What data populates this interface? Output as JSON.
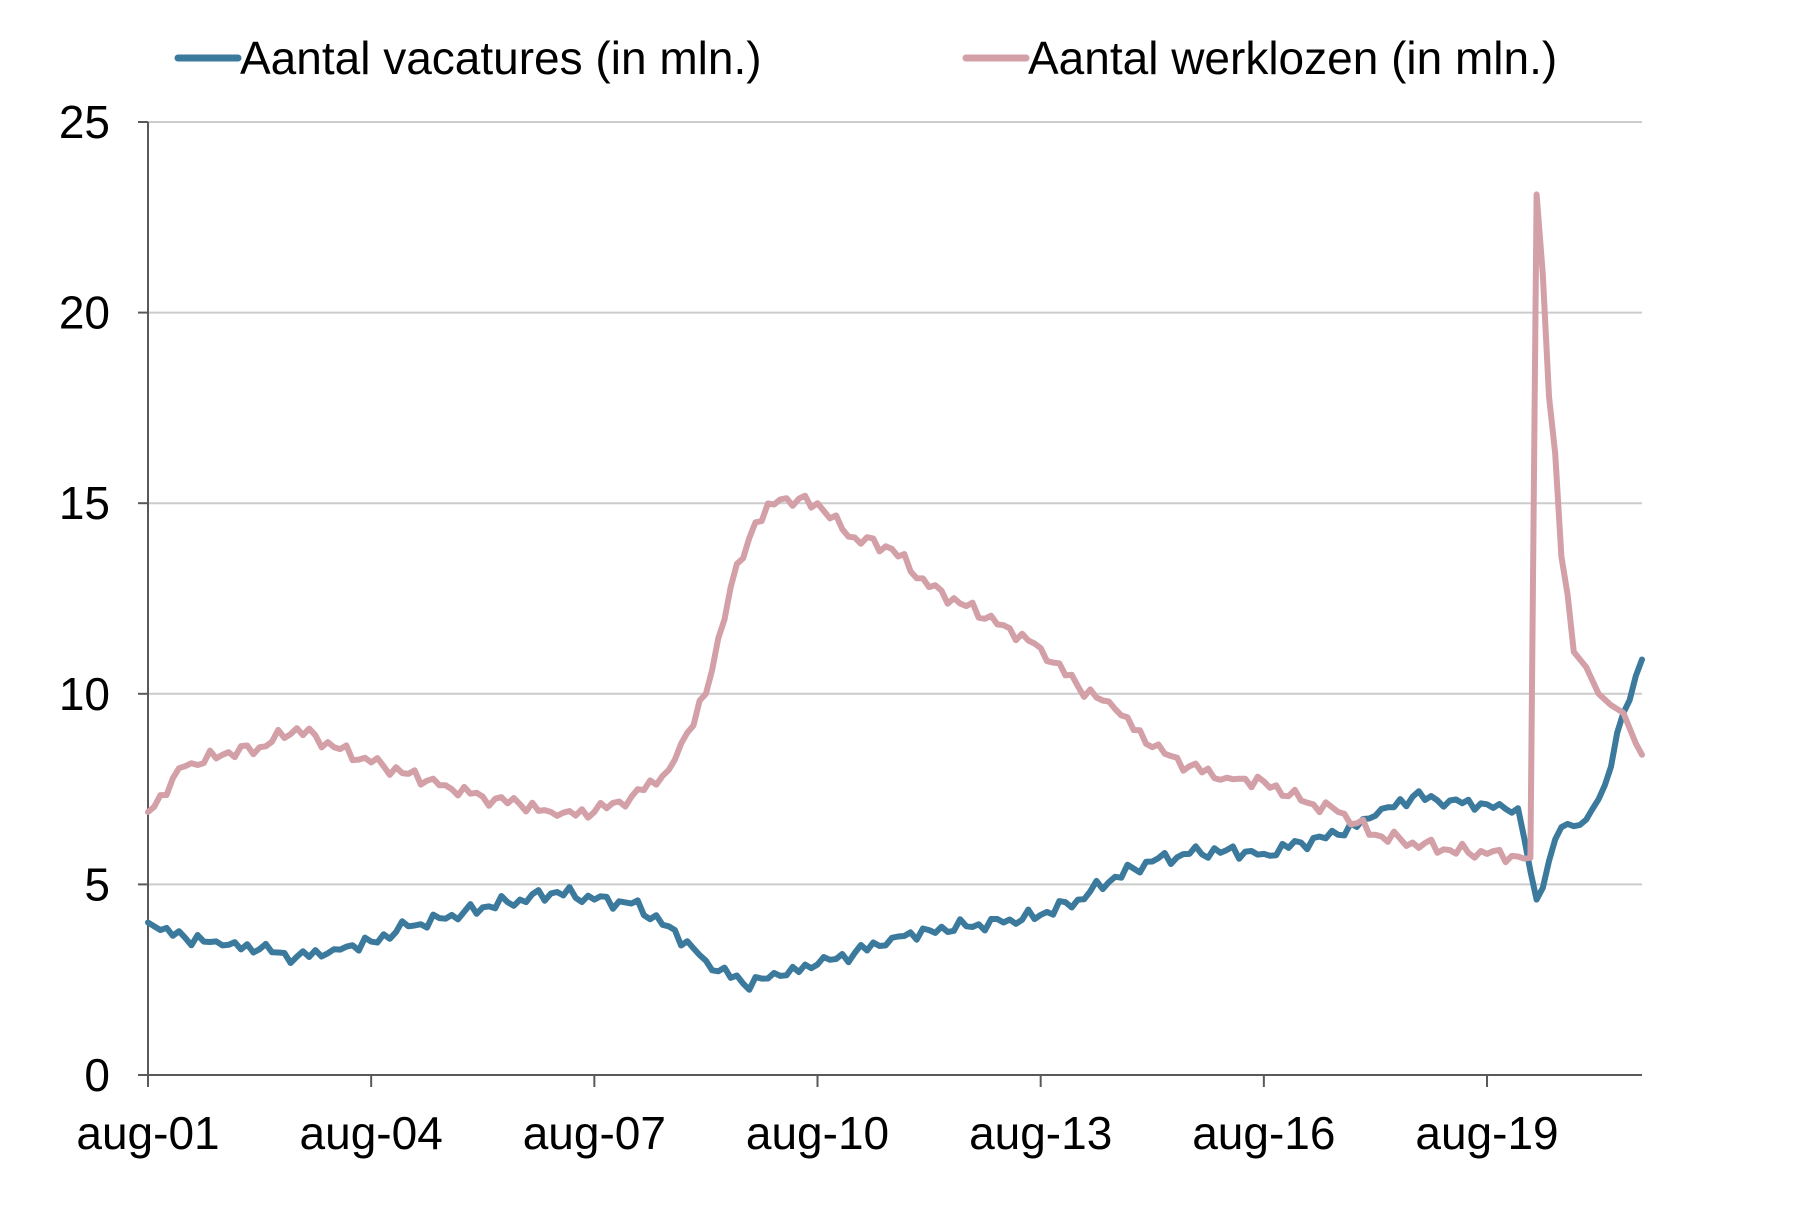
{
  "chart_data": {
    "type": "line",
    "title": "",
    "xlabel": "",
    "ylabel": "",
    "ylim": [
      0,
      25
    ],
    "yticks": [
      0,
      5,
      10,
      15,
      20,
      25
    ],
    "x_tick_labels": [
      "aug-01",
      "aug-04",
      "aug-07",
      "aug-10",
      "aug-13",
      "aug-16",
      "aug-19"
    ],
    "x_range": [
      "2001-08",
      "2021-09"
    ],
    "grid": "horizontal",
    "legend_position": "top",
    "series": [
      {
        "name": "Aantal vacatures (in mln.)",
        "color": "#3b7a9c",
        "points": [
          [
            "2001-08",
            4.0
          ],
          [
            "2001-10",
            3.8
          ],
          [
            "2002-02",
            3.6
          ],
          [
            "2002-08",
            3.4
          ],
          [
            "2003-02",
            3.3
          ],
          [
            "2003-08",
            3.1
          ],
          [
            "2004-02",
            3.3
          ],
          [
            "2004-08",
            3.5
          ],
          [
            "2005-02",
            3.9
          ],
          [
            "2005-08",
            4.1
          ],
          [
            "2006-02",
            4.4
          ],
          [
            "2006-08",
            4.6
          ],
          [
            "2007-02",
            4.8
          ],
          [
            "2007-08",
            4.6
          ],
          [
            "2008-02",
            4.5
          ],
          [
            "2008-08",
            3.9
          ],
          [
            "2009-02",
            3.0
          ],
          [
            "2009-08",
            2.4
          ],
          [
            "2010-02",
            2.6
          ],
          [
            "2010-08",
            2.9
          ],
          [
            "2011-02",
            3.2
          ],
          [
            "2011-08",
            3.6
          ],
          [
            "2012-02",
            3.8
          ],
          [
            "2012-08",
            3.9
          ],
          [
            "2013-02",
            4.0
          ],
          [
            "2013-08",
            4.2
          ],
          [
            "2014-02",
            4.6
          ],
          [
            "2014-08",
            5.2
          ],
          [
            "2015-02",
            5.6
          ],
          [
            "2015-08",
            5.8
          ],
          [
            "2016-02",
            5.9
          ],
          [
            "2016-08",
            5.8
          ],
          [
            "2017-02",
            6.1
          ],
          [
            "2017-08",
            6.3
          ],
          [
            "2018-02",
            6.8
          ],
          [
            "2018-08",
            7.3
          ],
          [
            "2019-02",
            7.2
          ],
          [
            "2019-08",
            7.1
          ],
          [
            "2020-01",
            7.0
          ],
          [
            "2020-04",
            4.6
          ],
          [
            "2020-08",
            6.5
          ],
          [
            "2020-12",
            6.7
          ],
          [
            "2021-03",
            7.6
          ],
          [
            "2021-06",
            9.5
          ],
          [
            "2021-09",
            10.9
          ]
        ]
      },
      {
        "name": "Aantal werklozen (in mln.)",
        "color": "#d3a0a8",
        "points": [
          [
            "2001-08",
            6.9
          ],
          [
            "2002-02",
            8.1
          ],
          [
            "2002-08",
            8.4
          ],
          [
            "2003-02",
            8.6
          ],
          [
            "2003-08",
            9.1
          ],
          [
            "2004-02",
            8.6
          ],
          [
            "2004-08",
            8.2
          ],
          [
            "2005-02",
            7.9
          ],
          [
            "2005-08",
            7.6
          ],
          [
            "2006-02",
            7.3
          ],
          [
            "2006-08",
            7.1
          ],
          [
            "2007-02",
            6.8
          ],
          [
            "2007-08",
            6.9
          ],
          [
            "2008-02",
            7.3
          ],
          [
            "2008-08",
            8.0
          ],
          [
            "2009-02",
            10.0
          ],
          [
            "2009-06",
            12.8
          ],
          [
            "2009-10",
            14.5
          ],
          [
            "2010-02",
            15.1
          ],
          [
            "2010-08",
            15.0
          ],
          [
            "2010-10",
            14.6
          ],
          [
            "2011-02",
            14.1
          ],
          [
            "2011-08",
            13.8
          ],
          [
            "2012-02",
            12.8
          ],
          [
            "2012-08",
            12.3
          ],
          [
            "2013-02",
            11.8
          ],
          [
            "2013-08",
            11.2
          ],
          [
            "2014-02",
            10.2
          ],
          [
            "2014-08",
            9.6
          ],
          [
            "2015-02",
            8.6
          ],
          [
            "2015-08",
            8.1
          ],
          [
            "2016-02",
            7.8
          ],
          [
            "2016-08",
            7.7
          ],
          [
            "2017-02",
            7.2
          ],
          [
            "2017-08",
            6.9
          ],
          [
            "2018-02",
            6.3
          ],
          [
            "2018-08",
            6.1
          ],
          [
            "2019-02",
            5.9
          ],
          [
            "2019-08",
            5.8
          ],
          [
            "2020-03",
            5.7
          ],
          [
            "2020-04",
            23.1
          ],
          [
            "2020-05",
            21.0
          ],
          [
            "2020-06",
            17.8
          ],
          [
            "2020-07",
            16.3
          ],
          [
            "2020-08",
            13.6
          ],
          [
            "2020-09",
            12.6
          ],
          [
            "2020-10",
            11.1
          ],
          [
            "2020-12",
            10.7
          ],
          [
            "2021-02",
            10.0
          ],
          [
            "2021-04",
            9.7
          ],
          [
            "2021-06",
            9.5
          ],
          [
            "2021-08",
            8.7
          ],
          [
            "2021-09",
            8.4
          ]
        ]
      }
    ]
  }
}
